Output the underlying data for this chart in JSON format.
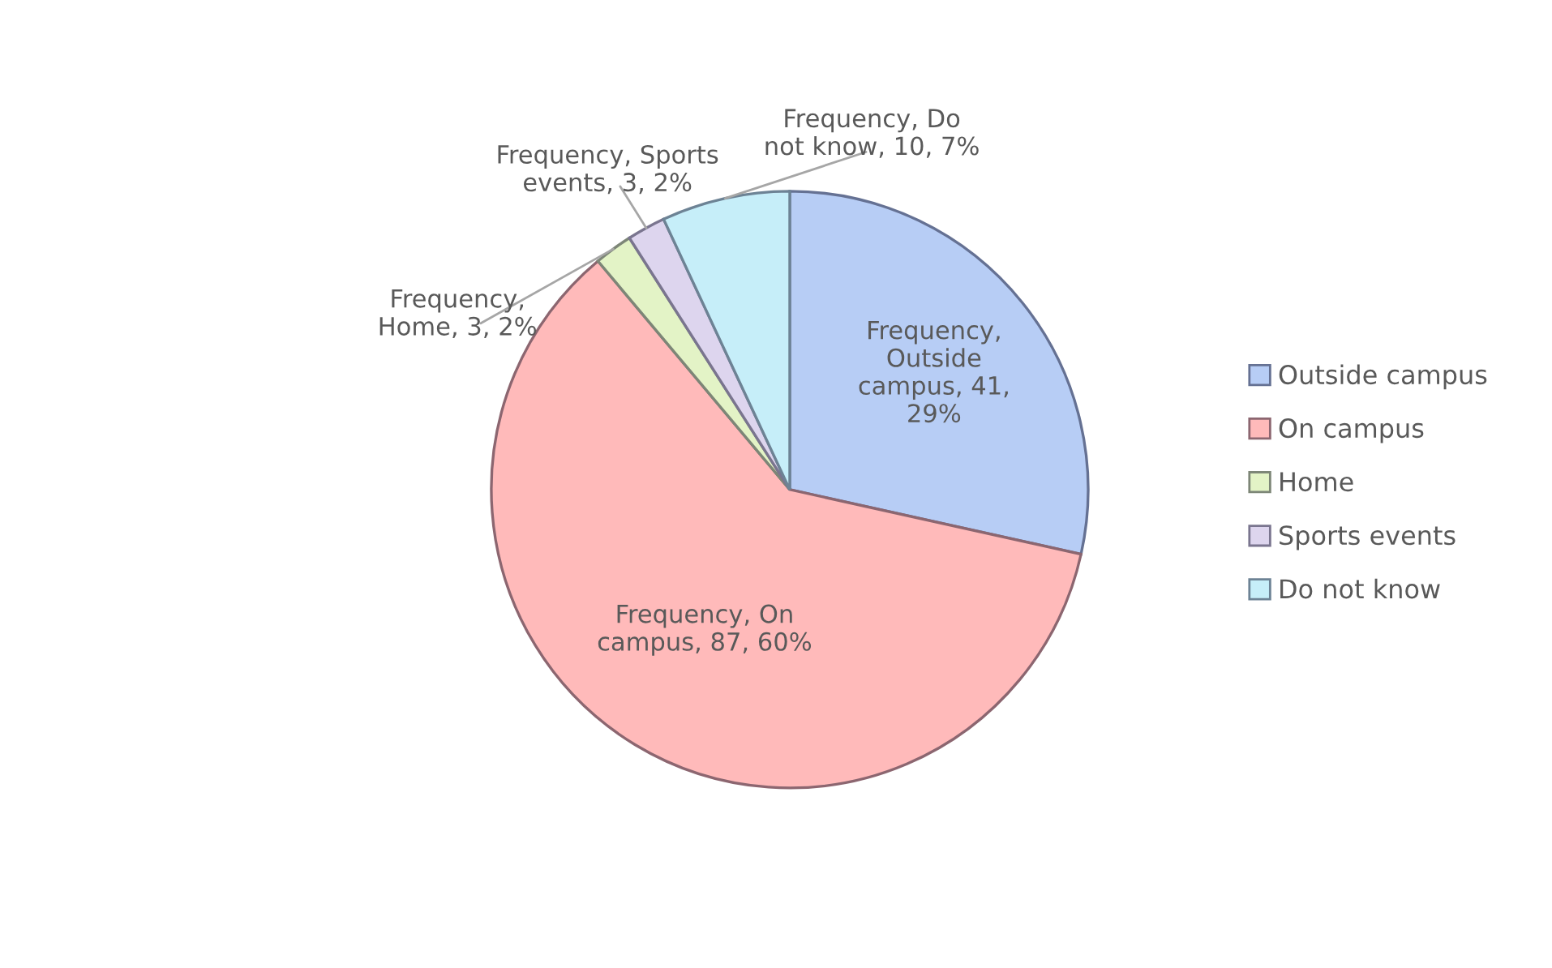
{
  "chart_data": {
    "type": "pie",
    "categories": [
      "Outside campus",
      "On campus",
      "Home",
      "Sports events",
      "Do not know"
    ],
    "values": [
      41,
      87,
      3,
      3,
      10
    ],
    "colors": [
      "#b7cdf5",
      "#ffbaba",
      "#e3f3c6",
      "#ddd5ee",
      "#c6eef9"
    ],
    "value_labels": [
      "Frequency,\nOutside\ncampus, 41,\n29%",
      "Frequency, On\ncampus, 87, 60%",
      "Frequency,\nHome, 3, 2%",
      "Frequency, Sports\nevents, 3, 2%",
      "Frequency, Do\nnot know, 10, 7%"
    ],
    "legend": "right"
  }
}
